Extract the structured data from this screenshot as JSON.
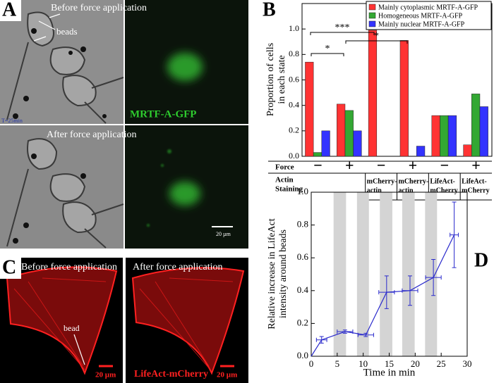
{
  "panels": {
    "A": {
      "label": "A",
      "before": "Before force application",
      "beads": "beads",
      "marker": "MRTF-A-GFP",
      "time": "T=25min",
      "after": "After force application",
      "scale": "20 µm"
    },
    "C": {
      "label": "C",
      "before": "Before force application",
      "after": "After force application",
      "bead": "bead",
      "scale_left": "20 µm",
      "scale_right": "20 µm",
      "marker": "LifeAct-mCherry"
    }
  },
  "chart_data": [
    {
      "type": "bar",
      "panel_label": "B",
      "ylabel": [
        "Proportion of cells",
        "in each state"
      ],
      "category_label": "Force",
      "categories": [
        "−",
        "+",
        "−",
        "+",
        "−",
        "+"
      ],
      "staining_label": [
        "Actin",
        "Staining"
      ],
      "staining": [
        null,
        null,
        [
          "mCherry-",
          "actin"
        ],
        [
          "mCherry-",
          "actin"
        ],
        [
          "LifeAct-",
          "mCherry"
        ],
        [
          "LifeAct-",
          "mCherry"
        ]
      ],
      "series": [
        {
          "name": "Mainly cytoplasmic MRTF-A-GFP",
          "color": "#ff3333",
          "values": [
            0.74,
            0.41,
            0.99,
            0.91,
            0.32,
            0.09
          ]
        },
        {
          "name": "Homogeneous MRTF-A-GFP",
          "color": "#33a833",
          "values": [
            0.03,
            0.36,
            0,
            0,
            0.32,
            0.49
          ]
        },
        {
          "name": "Mainly nuclear MRTF-A-GFP",
          "color": "#3333ff",
          "values": [
            0.2,
            0.2,
            0,
            0.08,
            0.32,
            0.39
          ]
        }
      ],
      "ylim": [
        0,
        1.2
      ],
      "yticks": [
        {
          "value": 0,
          "label": "0.0"
        },
        0.2,
        0.4,
        0.6,
        0.8,
        {
          "value": 1,
          "label": "1.0"
        }
      ],
      "legend": "upper right",
      "annotations": [
        "***",
        "*",
        "*"
      ]
    },
    {
      "type": "line",
      "panel_label": "D",
      "xlabel": "Time in min",
      "ylabel": [
        "Relative increase in LifeAct",
        "intensity around beads"
      ],
      "x": [
        0,
        2,
        6.5,
        10.5,
        14.5,
        19,
        23.5,
        27.5
      ],
      "values": [
        0,
        0.1,
        0.15,
        0.13,
        0.39,
        0.4,
        0.48,
        0.74
      ],
      "errors": [
        null,
        0.02,
        0.01,
        0.01,
        0.1,
        0.09,
        0.11,
        0.2
      ],
      "xerr": [
        null,
        1,
        1.5,
        1.5,
        1.5,
        1.5,
        1.5,
        0.8
      ],
      "color": "#2a2acc",
      "shaded_spans": [
        [
          4.3,
          6.7
        ],
        [
          8.8,
          11.1
        ],
        [
          13.2,
          15.6
        ],
        [
          17.5,
          19.9
        ],
        [
          21.9,
          24.2
        ]
      ],
      "xlim": [
        0,
        30
      ],
      "xticks": [
        0,
        5,
        10,
        15,
        20,
        25,
        30
      ],
      "ylim": [
        0,
        1
      ],
      "yticks": [
        {
          "value": 0,
          "label": "0.0"
        },
        0.2,
        0.4,
        0.6,
        0.8,
        {
          "value": 1,
          "label": "1.0"
        }
      ]
    }
  ]
}
